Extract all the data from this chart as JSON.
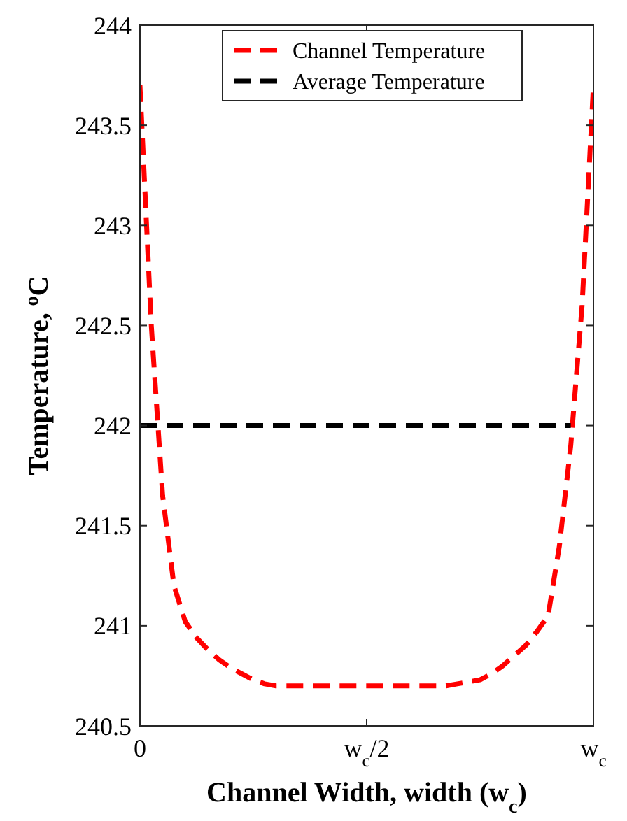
{
  "chart_data": {
    "type": "line",
    "xlabel": "Channel Width, width (w$_{c}$)",
    "ylabel": "Temperature, $^{o}$C",
    "categories": [
      "0",
      null,
      null,
      null,
      null,
      null,
      null,
      null,
      null,
      null,
      null,
      null,
      null,
      null,
      null,
      null,
      null,
      null,
      null,
      null,
      "w$_{c}$/2",
      null,
      null,
      null,
      null,
      null,
      null,
      null,
      null,
      null,
      null,
      null,
      null,
      null,
      null,
      null,
      null,
      null,
      null,
      null,
      "w$_{c}$"
    ],
    "ylim": [
      240.5,
      244
    ],
    "yticks": [
      240.5,
      241,
      241.5,
      242,
      242.5,
      243,
      243.5,
      244
    ],
    "legend": "top",
    "series": [
      {
        "name": "Channel Temperature",
        "color": "#ff0000",
        "line_style": "dashed",
        "values": [
          243.7,
          242.5,
          241.65,
          241.2,
          241.02,
          240.94,
          240.88,
          240.83,
          240.79,
          240.76,
          240.73,
          240.71,
          240.7,
          240.7,
          240.7,
          240.7,
          240.7,
          240.7,
          240.7,
          240.7,
          240.7,
          240.7,
          240.7,
          240.7,
          240.7,
          240.7,
          240.7,
          240.7,
          240.71,
          240.72,
          240.73,
          240.76,
          240.8,
          240.85,
          240.9,
          240.97,
          241.05,
          241.4,
          241.9,
          242.6,
          243.7
        ]
      },
      {
        "name": "Average Temperature",
        "color": "#000000",
        "line_style": "dashed",
        "values": [
          242,
          242,
          242,
          242,
          242,
          242,
          242,
          242,
          242,
          242,
          242,
          242,
          242,
          242,
          242,
          242,
          242,
          242,
          242,
          242,
          242,
          242,
          242,
          242,
          242,
          242,
          242,
          242,
          242,
          242,
          242,
          242,
          242,
          242,
          242,
          242,
          242,
          242,
          242,
          null,
          null
        ]
      }
    ]
  }
}
